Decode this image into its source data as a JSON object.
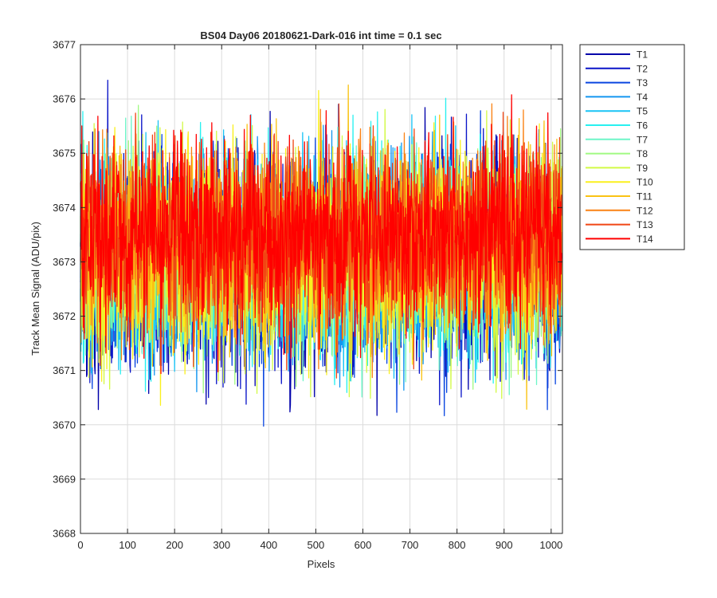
{
  "chart_data": {
    "type": "line",
    "title": "BS04 Day06 20180621-Dark-016 int time = 0.1 sec",
    "xlabel": "Pixels",
    "ylabel": "Track Mean Signal (ADU/pix)",
    "xlim": [
      0,
      1024
    ],
    "ylim": [
      3668,
      3677
    ],
    "xticks": [
      "0",
      "100",
      "200",
      "300",
      "400",
      "500",
      "600",
      "700",
      "800",
      "900",
      "1000"
    ],
    "yticks": [
      "3668",
      "3669",
      "3670",
      "3671",
      "3672",
      "3673",
      "3674",
      "3675",
      "3676",
      "3677"
    ],
    "grid": true,
    "legend_position": "outside-right",
    "n_points": 1024,
    "noise_seed": 20180621,
    "series": [
      {
        "name": "T1",
        "color": "#0000AA",
        "mean": 3672.9,
        "sd": 0.95
      },
      {
        "name": "T2",
        "color": "#0A14C8",
        "mean": 3672.95,
        "sd": 0.95
      },
      {
        "name": "T3",
        "color": "#0A46E0",
        "mean": 3673.0,
        "sd": 0.95
      },
      {
        "name": "T4",
        "color": "#1496F0",
        "mean": 3673.0,
        "sd": 0.9
      },
      {
        "name": "T5",
        "color": "#19C3F5",
        "mean": 3673.05,
        "sd": 0.9
      },
      {
        "name": "T6",
        "color": "#28F0F0",
        "mean": 3673.05,
        "sd": 0.9
      },
      {
        "name": "T7",
        "color": "#6EF5C8",
        "mean": 3673.1,
        "sd": 0.9
      },
      {
        "name": "T8",
        "color": "#A0FA82",
        "mean": 3673.1,
        "sd": 0.9
      },
      {
        "name": "T9",
        "color": "#D2FA46",
        "mean": 3673.15,
        "sd": 0.9
      },
      {
        "name": "T10",
        "color": "#FAF01E",
        "mean": 3673.2,
        "sd": 0.9
      },
      {
        "name": "T11",
        "color": "#FAC314",
        "mean": 3673.3,
        "sd": 0.9
      },
      {
        "name": "T12",
        "color": "#FA8214",
        "mean": 3673.35,
        "sd": 0.85
      },
      {
        "name": "T13",
        "color": "#F04614",
        "mean": 3673.45,
        "sd": 0.85
      },
      {
        "name": "T14",
        "color": "#FF0000",
        "mean": 3673.5,
        "sd": 0.85
      }
    ]
  }
}
